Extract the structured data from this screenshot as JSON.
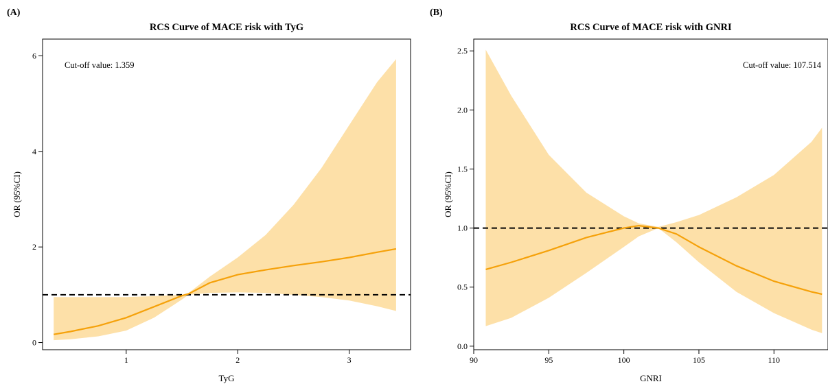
{
  "colors": {
    "band": "#fde0a8",
    "curve": "#f5a10a",
    "reference": "#000000"
  },
  "chart_data": [
    {
      "type": "line",
      "panel_label": "(A)",
      "title": "RCS Curve of MACE risk with TyG",
      "xlabel": "TyG",
      "ylabel": "OR (95%CI)",
      "annotation": "Cut-off value: 1.359",
      "annotation_position": "top-left",
      "xlim": [
        0.25,
        3.55
      ],
      "ylim": [
        -0.15,
        6.35
      ],
      "xticks": [
        1,
        2,
        3
      ],
      "yticks": [
        0,
        2,
        4,
        6
      ],
      "reference_y": 1,
      "grid": false,
      "x": [
        0.35,
        0.5,
        0.75,
        1.0,
        1.25,
        1.5,
        1.56,
        1.75,
        2.0,
        2.25,
        2.5,
        2.75,
        3.0,
        3.25,
        3.42
      ],
      "or": [
        0.17,
        0.23,
        0.35,
        0.52,
        0.75,
        0.98,
        1.02,
        1.25,
        1.42,
        1.52,
        1.61,
        1.69,
        1.78,
        1.89,
        1.96
      ],
      "lower": [
        0.05,
        0.07,
        0.13,
        0.25,
        0.52,
        0.9,
        1.0,
        1.04,
        1.05,
        1.04,
        1.0,
        0.95,
        0.88,
        0.76,
        0.66
      ],
      "upper": [
        0.95,
        0.95,
        0.95,
        0.95,
        0.97,
        1.0,
        1.04,
        1.38,
        1.78,
        2.25,
        2.88,
        3.65,
        4.55,
        5.45,
        5.93
      ]
    },
    {
      "type": "line",
      "panel_label": "(B)",
      "title": "RCS Curve of MACE risk with GNRI",
      "xlabel": "GNRI",
      "ylabel": "OR (95%CI)",
      "annotation": "Cut-off value: 107.514",
      "annotation_position": "top-right",
      "xlim": [
        90.0,
        113.6
      ],
      "ylim": [
        -0.03,
        2.6
      ],
      "xticks": [
        90,
        95,
        100,
        105,
        110
      ],
      "yticks": [
        "0.0",
        "0.5",
        "1.0",
        "1.5",
        "2.0",
        "2.5"
      ],
      "reference_y": 1,
      "grid": false,
      "x": [
        90.8,
        92.5,
        95.0,
        97.5,
        100.0,
        101.0,
        102.3,
        103.5,
        105.0,
        107.5,
        110.0,
        112.5,
        113.2
      ],
      "or": [
        0.65,
        0.71,
        0.81,
        0.92,
        1.0,
        1.02,
        1.0,
        0.95,
        0.84,
        0.68,
        0.55,
        0.46,
        0.44
      ],
      "lower": [
        0.17,
        0.24,
        0.41,
        0.62,
        0.84,
        0.93,
        1.0,
        0.88,
        0.71,
        0.46,
        0.28,
        0.14,
        0.11
      ],
      "upper": [
        2.51,
        2.12,
        1.62,
        1.3,
        1.1,
        1.04,
        1.01,
        1.05,
        1.11,
        1.26,
        1.45,
        1.73,
        1.85
      ]
    }
  ]
}
